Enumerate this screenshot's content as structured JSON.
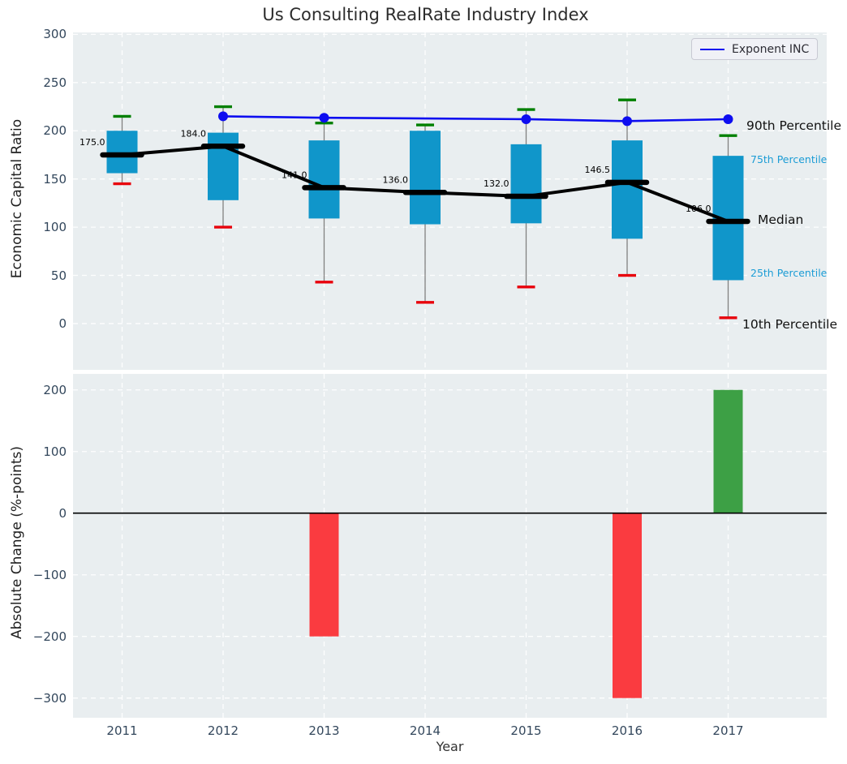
{
  "title": "Us Consulting RealRate Industry Index",
  "legend": {
    "label": "Exponent INC"
  },
  "axis_annotations": {
    "p90": "90th Percentile",
    "p75": "75th Percentile",
    "median": "Median",
    "p25": "25th Percentile",
    "p10": "10th Percentile"
  },
  "colors": {
    "panel_bg": "#e9eef0",
    "grid": "#ffffff",
    "box": "#1096ca",
    "whisker": "#808080",
    "cap_high": "#008000",
    "cap_low": "#e8000b",
    "median_line": "#000000",
    "exponent_line": "#0d0df0",
    "bar_negative": "#fa3b40",
    "bar_positive": "#3da045",
    "tick_text": "#33475c",
    "annotation_blue": "#1b9cd5"
  },
  "chart_data": [
    {
      "type": "boxplot",
      "title": "Us Consulting RealRate Industry Index",
      "ylabel": "Economic Capital Ratio",
      "categories": [
        "2011",
        "2012",
        "2013",
        "2014",
        "2015",
        "2016",
        "2017"
      ],
      "ylim": [
        -48,
        302
      ],
      "grid": true,
      "legend_position": "upper right",
      "yticks": [
        {
          "value": 300,
          "label": "300"
        },
        {
          "value": 250,
          "label": "250"
        },
        {
          "value": 200,
          "label": "200"
        },
        {
          "value": 150,
          "label": "150"
        },
        {
          "value": 100,
          "label": "100"
        },
        {
          "value": 50,
          "label": "50"
        },
        {
          "value": 0,
          "label": "0"
        }
      ],
      "boxes": [
        {
          "category": "2011",
          "p10": 145,
          "p25": 156,
          "median": 175,
          "p75": 200,
          "p90": 215,
          "median_label": "175.0"
        },
        {
          "category": "2012",
          "p10": 100,
          "p25": 128,
          "median": 184,
          "p75": 198,
          "p90": 225,
          "median_label": "184.0"
        },
        {
          "category": "2013",
          "p10": 43,
          "p25": 109,
          "median": 141,
          "p75": 190,
          "p90": 208,
          "median_label": "141.0"
        },
        {
          "category": "2014",
          "p10": 22,
          "p25": 103,
          "median": 136,
          "p75": 200,
          "p90": 206,
          "median_label": "136.0"
        },
        {
          "category": "2015",
          "p10": 38,
          "p25": 104,
          "median": 132,
          "p75": 186,
          "p90": 222,
          "median_label": "132.0"
        },
        {
          "category": "2016",
          "p10": 50,
          "p25": 88,
          "median": 146.5,
          "p75": 190,
          "p90": 232,
          "median_label": "146.5"
        },
        {
          "category": "2017",
          "p10": 6,
          "p25": 45,
          "median": 106,
          "p75": 174,
          "p90": 195,
          "median_label": "106.0"
        }
      ],
      "line_series": {
        "name": "Exponent INC",
        "points": [
          {
            "category": "2012",
            "value": 215
          },
          {
            "category": "2013",
            "value": 213.5
          },
          {
            "category": "2015",
            "value": 212
          },
          {
            "category": "2016",
            "value": 210
          },
          {
            "category": "2017",
            "value": 212
          }
        ]
      }
    },
    {
      "type": "bar",
      "ylabel": "Absolute Change (%-points)",
      "xlabel": "Year",
      "categories": [
        "2011",
        "2012",
        "2013",
        "2014",
        "2015",
        "2016",
        "2017"
      ],
      "ylim": [
        -332,
        226
      ],
      "grid": true,
      "yticks": [
        {
          "value": 200,
          "label": "200"
        },
        {
          "value": 100,
          "label": "100"
        },
        {
          "value": 0,
          "label": "0"
        },
        {
          "value": -100,
          "label": "−100"
        },
        {
          "value": -200,
          "label": "−200"
        },
        {
          "value": -300,
          "label": "−300"
        }
      ],
      "bars": [
        {
          "category": "2013",
          "value": -200
        },
        {
          "category": "2016",
          "value": -300
        },
        {
          "category": "2017",
          "value": 200
        }
      ]
    }
  ]
}
